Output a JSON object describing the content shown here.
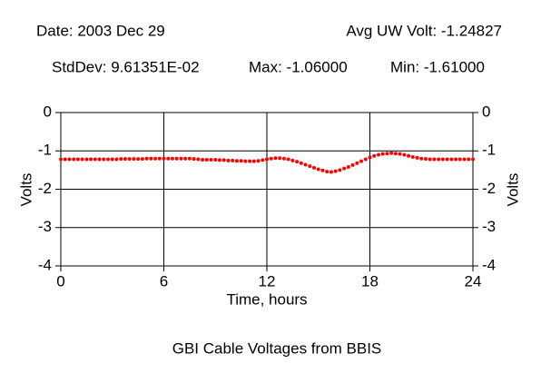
{
  "chart_data": {
    "type": "scatter",
    "title": "GBI Cable Voltages from BBIS",
    "annotations": [
      "Date: 2003 Dec 29",
      "Avg UW Volt: -1.24827",
      "StdDev: 9.61351E-02",
      "Max: -1.06000",
      "Min: -1.61000"
    ],
    "xlabel": "Time, hours",
    "ylabel": "Volts",
    "xlim": [
      0,
      24
    ],
    "xticks": [
      0,
      6,
      12,
      18,
      24
    ],
    "ylim": [
      -4,
      0
    ],
    "yticks": [
      -4,
      -3,
      -2,
      -1,
      0
    ],
    "grid": true,
    "right_axis": true,
    "series": [
      {
        "color": "#ff0000",
        "x": [
          0,
          0.25,
          0.5,
          0.75,
          1,
          1.25,
          1.5,
          1.75,
          2,
          2.25,
          2.5,
          2.75,
          3,
          3.25,
          3.5,
          3.75,
          4,
          4.25,
          4.5,
          4.75,
          5,
          5.25,
          5.5,
          5.75,
          6,
          6.25,
          6.5,
          6.75,
          7,
          7.25,
          7.5,
          7.75,
          8,
          8.25,
          8.5,
          8.75,
          9,
          9.25,
          9.5,
          9.75,
          10,
          10.25,
          10.5,
          10.75,
          11,
          11.25,
          11.5,
          11.75,
          12,
          12.25,
          12.5,
          12.75,
          13,
          13.25,
          13.5,
          13.75,
          14,
          14.25,
          14.5,
          14.75,
          15,
          15.25,
          15.5,
          15.75,
          16,
          16.25,
          16.5,
          16.75,
          17,
          17.25,
          17.5,
          17.75,
          18,
          18.25,
          18.5,
          18.75,
          19,
          19.25,
          19.5,
          19.75,
          20,
          20.25,
          20.5,
          20.75,
          21,
          21.25,
          21.5,
          21.75,
          22,
          22.25,
          22.5,
          22.75,
          23,
          23.25,
          23.5,
          23.75,
          24
        ],
        "values": [
          -1.22,
          -1.22,
          -1.22,
          -1.22,
          -1.22,
          -1.22,
          -1.22,
          -1.22,
          -1.22,
          -1.22,
          -1.22,
          -1.22,
          -1.22,
          -1.22,
          -1.21,
          -1.21,
          -1.21,
          -1.21,
          -1.21,
          -1.21,
          -1.2,
          -1.2,
          -1.2,
          -1.2,
          -1.2,
          -1.2,
          -1.2,
          -1.2,
          -1.2,
          -1.2,
          -1.2,
          -1.21,
          -1.22,
          -1.23,
          -1.23,
          -1.23,
          -1.23,
          -1.24,
          -1.24,
          -1.25,
          -1.25,
          -1.26,
          -1.26,
          -1.27,
          -1.27,
          -1.27,
          -1.26,
          -1.24,
          -1.22,
          -1.2,
          -1.19,
          -1.19,
          -1.2,
          -1.22,
          -1.25,
          -1.28,
          -1.32,
          -1.36,
          -1.4,
          -1.44,
          -1.48,
          -1.51,
          -1.54,
          -1.55,
          -1.53,
          -1.5,
          -1.46,
          -1.42,
          -1.37,
          -1.32,
          -1.27,
          -1.22,
          -1.17,
          -1.13,
          -1.1,
          -1.08,
          -1.07,
          -1.06,
          -1.07,
          -1.08,
          -1.1,
          -1.13,
          -1.16,
          -1.18,
          -1.2,
          -1.21,
          -1.22,
          -1.22,
          -1.22,
          -1.22,
          -1.22,
          -1.22,
          -1.22,
          -1.22,
          -1.22,
          -1.22,
          -1.22
        ]
      }
    ]
  }
}
